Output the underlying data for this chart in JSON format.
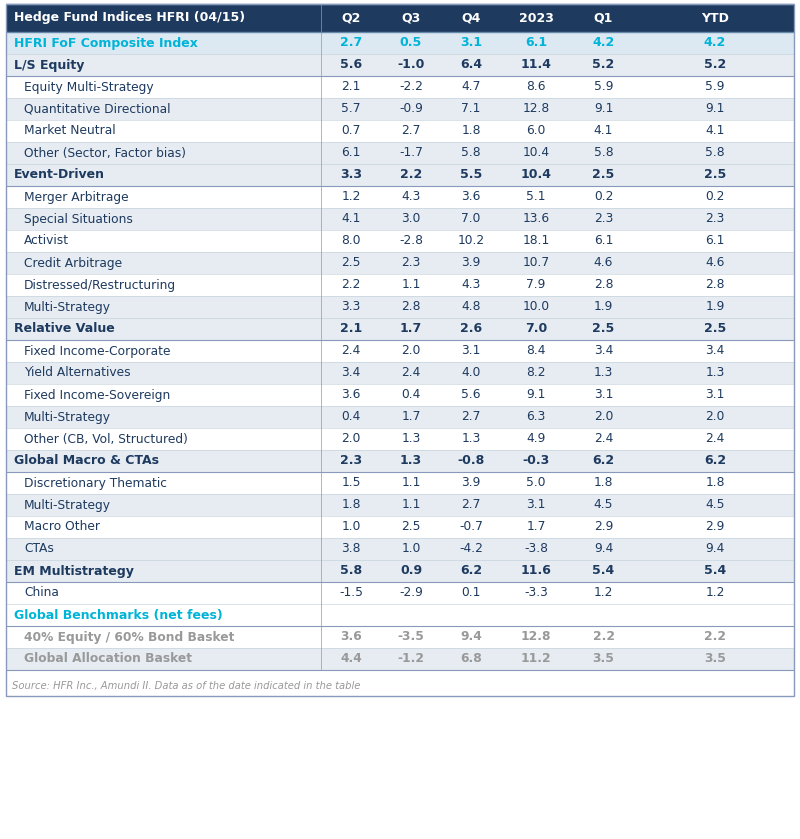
{
  "title": "Hedge Fund Indices HFRI (04/15)",
  "columns": [
    "Q2",
    "Q3",
    "Q4",
    "2023",
    "Q1",
    "YTD"
  ],
  "rows": [
    {
      "label": "HFRI FoF Composite Index",
      "values": [
        "2.7",
        "0.5",
        "3.1",
        "6.1",
        "4.2",
        "4.2"
      ],
      "style": "cyan_bold"
    },
    {
      "label": "L/S Equity",
      "values": [
        "5.6",
        "-1.0",
        "6.4",
        "11.4",
        "5.2",
        "5.2"
      ],
      "style": "header_bold"
    },
    {
      "label": "Equity Multi-Strategy",
      "values": [
        "2.1",
        "-2.2",
        "4.7",
        "8.6",
        "5.9",
        "5.9"
      ],
      "style": "normal"
    },
    {
      "label": "Quantitative Directional",
      "values": [
        "5.7",
        "-0.9",
        "7.1",
        "12.8",
        "9.1",
        "9.1"
      ],
      "style": "normal_shaded"
    },
    {
      "label": "Market Neutral",
      "values": [
        "0.7",
        "2.7",
        "1.8",
        "6.0",
        "4.1",
        "4.1"
      ],
      "style": "normal"
    },
    {
      "label": "Other (Sector, Factor bias)",
      "values": [
        "6.1",
        "-1.7",
        "5.8",
        "10.4",
        "5.8",
        "5.8"
      ],
      "style": "normal_shaded"
    },
    {
      "label": "Event-Driven",
      "values": [
        "3.3",
        "2.2",
        "5.5",
        "10.4",
        "2.5",
        "2.5"
      ],
      "style": "header_bold"
    },
    {
      "label": "Merger Arbitrage",
      "values": [
        "1.2",
        "4.3",
        "3.6",
        "5.1",
        "0.2",
        "0.2"
      ],
      "style": "normal"
    },
    {
      "label": "Special Situations",
      "values": [
        "4.1",
        "3.0",
        "7.0",
        "13.6",
        "2.3",
        "2.3"
      ],
      "style": "normal_shaded"
    },
    {
      "label": "Activist",
      "values": [
        "8.0",
        "-2.8",
        "10.2",
        "18.1",
        "6.1",
        "6.1"
      ],
      "style": "normal"
    },
    {
      "label": "Credit Arbitrage",
      "values": [
        "2.5",
        "2.3",
        "3.9",
        "10.7",
        "4.6",
        "4.6"
      ],
      "style": "normal_shaded"
    },
    {
      "label": "Distressed/Restructuring",
      "values": [
        "2.2",
        "1.1",
        "4.3",
        "7.9",
        "2.8",
        "2.8"
      ],
      "style": "normal"
    },
    {
      "label": "Multi-Strategy",
      "values": [
        "3.3",
        "2.8",
        "4.8",
        "10.0",
        "1.9",
        "1.9"
      ],
      "style": "normal_shaded"
    },
    {
      "label": "Relative Value",
      "values": [
        "2.1",
        "1.7",
        "2.6",
        "7.0",
        "2.5",
        "2.5"
      ],
      "style": "header_bold"
    },
    {
      "label": "Fixed Income-Corporate",
      "values": [
        "2.4",
        "2.0",
        "3.1",
        "8.4",
        "3.4",
        "3.4"
      ],
      "style": "normal"
    },
    {
      "label": "Yield Alternatives",
      "values": [
        "3.4",
        "2.4",
        "4.0",
        "8.2",
        "1.3",
        "1.3"
      ],
      "style": "normal_shaded"
    },
    {
      "label": "Fixed Income-Sovereign",
      "values": [
        "3.6",
        "0.4",
        "5.6",
        "9.1",
        "3.1",
        "3.1"
      ],
      "style": "normal"
    },
    {
      "label": "Multi-Strategy",
      "values": [
        "0.4",
        "1.7",
        "2.7",
        "6.3",
        "2.0",
        "2.0"
      ],
      "style": "normal_shaded"
    },
    {
      "label": "Other (CB, Vol, Structured)",
      "values": [
        "2.0",
        "1.3",
        "1.3",
        "4.9",
        "2.4",
        "2.4"
      ],
      "style": "normal"
    },
    {
      "label": "Global Macro & CTAs",
      "values": [
        "2.3",
        "1.3",
        "-0.8",
        "-0.3",
        "6.2",
        "6.2"
      ],
      "style": "header_bold"
    },
    {
      "label": "Discretionary Thematic",
      "values": [
        "1.5",
        "1.1",
        "3.9",
        "5.0",
        "1.8",
        "1.8"
      ],
      "style": "normal"
    },
    {
      "label": "Multi-Strategy",
      "values": [
        "1.8",
        "1.1",
        "2.7",
        "3.1",
        "4.5",
        "4.5"
      ],
      "style": "normal_shaded"
    },
    {
      "label": "Macro Other",
      "values": [
        "1.0",
        "2.5",
        "-0.7",
        "1.7",
        "2.9",
        "2.9"
      ],
      "style": "normal"
    },
    {
      "label": "CTAs",
      "values": [
        "3.8",
        "1.0",
        "-4.2",
        "-3.8",
        "9.4",
        "9.4"
      ],
      "style": "normal_shaded"
    },
    {
      "label": "EM Multistrategy",
      "values": [
        "5.8",
        "0.9",
        "6.2",
        "11.6",
        "5.4",
        "5.4"
      ],
      "style": "header_bold"
    },
    {
      "label": "China",
      "values": [
        "-1.5",
        "-2.9",
        "0.1",
        "-3.3",
        "1.2",
        "1.2"
      ],
      "style": "normal"
    },
    {
      "label": "Global Benchmarks (net fees)",
      "values": [
        null,
        null,
        null,
        null,
        null,
        null
      ],
      "style": "cyan_section"
    },
    {
      "label": "40% Equity / 60% Bond Basket",
      "values": [
        "3.6",
        "-3.5",
        "9.4",
        "12.8",
        "2.2",
        "2.2"
      ],
      "style": "gray_bold"
    },
    {
      "label": "Global Allocation Basket",
      "values": [
        "4.4",
        "-1.2",
        "6.8",
        "11.2",
        "3.5",
        "3.5"
      ],
      "style": "gray_bold_shaded"
    }
  ],
  "source_text": "Source: HFR Inc., Amundi II. Data as of the date indicated in the table",
  "header_bg": "#1e3a5f",
  "header_text": "#ffffff",
  "cyan_color": "#00b4d8",
  "normal_bg": "#ffffff",
  "shaded_bg": "#e6ecf2",
  "dark_text": "#1e3a5f",
  "gray_text": "#999999",
  "fig_width": 8.0,
  "fig_height": 8.39,
  "dpi": 100
}
